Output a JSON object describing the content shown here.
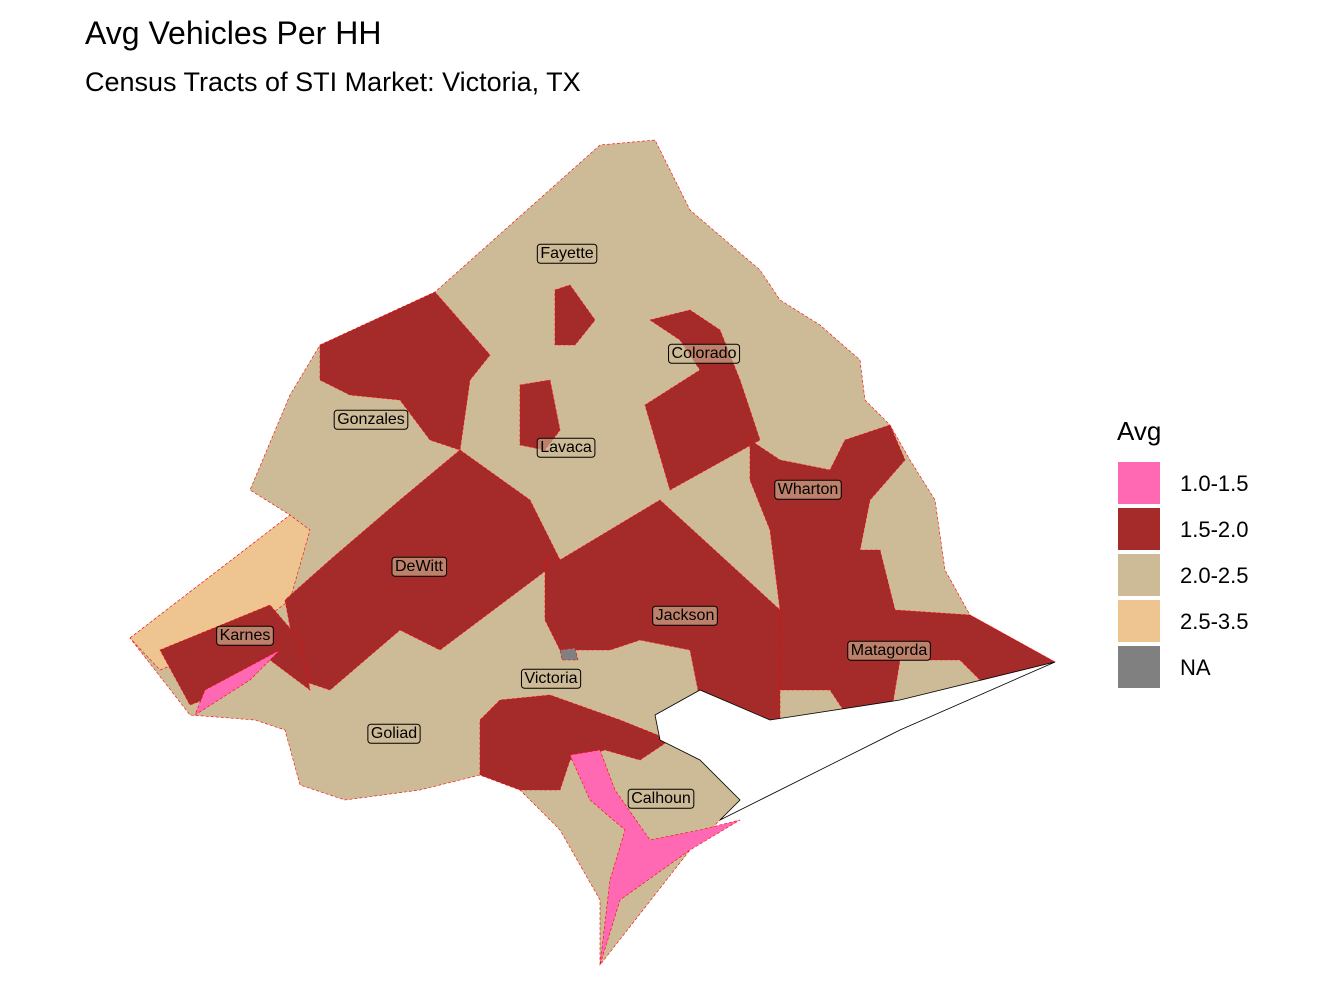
{
  "header": {
    "title": "Avg Vehicles Per HH",
    "subtitle": "Census Tracts of STI Market: Victoria, TX"
  },
  "legend": {
    "title": "Avg",
    "items": [
      {
        "label": "1.0-1.5",
        "color": "#ff69b4"
      },
      {
        "label": "1.5-2.0",
        "color": "#a52a2a"
      },
      {
        "label": "2.0-2.5",
        "color": "#cdba96"
      },
      {
        "label": "2.5-3.5",
        "color": "#eec591"
      },
      {
        "label": "NA",
        "color": "#808080"
      }
    ]
  },
  "counties": [
    {
      "name": "Fayette"
    },
    {
      "name": "Colorado"
    },
    {
      "name": "Gonzales"
    },
    {
      "name": "Lavaca"
    },
    {
      "name": "Wharton"
    },
    {
      "name": "DeWitt"
    },
    {
      "name": "Jackson"
    },
    {
      "name": "Karnes"
    },
    {
      "name": "Matagorda"
    },
    {
      "name": "Victoria"
    },
    {
      "name": "Goliad"
    },
    {
      "name": "Calhoun"
    }
  ]
}
